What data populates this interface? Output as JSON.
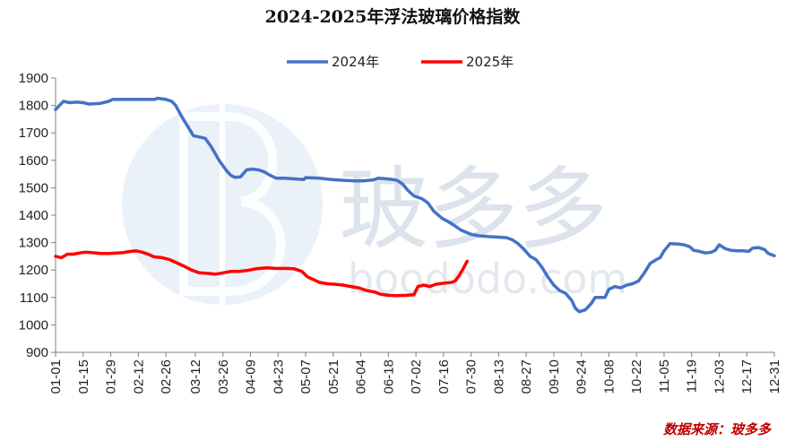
{
  "chart_data": {
    "type": "line",
    "title": "2024-2025年浮法玻璃价格指数",
    "source": "数据来源：玻多多",
    "watermark": {
      "cn": "玻多多",
      "en": "boododo.com"
    },
    "legend_position": "top-center",
    "grid": false,
    "ylim": [
      900,
      1900
    ],
    "yticks": [
      900,
      1000,
      1100,
      1200,
      1300,
      1400,
      1500,
      1600,
      1700,
      1800,
      1900
    ],
    "xlim": [
      "01-01",
      "12-31"
    ],
    "xticks": [
      "01-01",
      "01-15",
      "01-29",
      "02-12",
      "02-26",
      "03-12",
      "03-26",
      "04-09",
      "04-23",
      "05-07",
      "05-21",
      "06-04",
      "06-18",
      "07-02",
      "07-16",
      "07-30",
      "08-13",
      "08-27",
      "09-10",
      "09-24",
      "10-08",
      "10-22",
      "11-05",
      "11-19",
      "12-03",
      "12-17",
      "12-31"
    ],
    "series": [
      {
        "name": "2024年",
        "color": "#4472c4",
        "points": [
          [
            "01-01",
            1785
          ],
          [
            "01-03",
            1800
          ],
          [
            "01-05",
            1815
          ],
          [
            "01-08",
            1810
          ],
          [
            "01-12",
            1812
          ],
          [
            "01-15",
            1810
          ],
          [
            "01-18",
            1805
          ],
          [
            "01-24",
            1808
          ],
          [
            "01-28",
            1815
          ],
          [
            "01-30",
            1822
          ],
          [
            "02-05",
            1822
          ],
          [
            "02-12",
            1822
          ],
          [
            "02-20",
            1822
          ],
          [
            "02-22",
            1826
          ],
          [
            "02-26",
            1822
          ],
          [
            "02-29",
            1815
          ],
          [
            "03-02",
            1800
          ],
          [
            "03-05",
            1760
          ],
          [
            "03-08",
            1725
          ],
          [
            "03-11",
            1690
          ],
          [
            "03-14",
            1685
          ],
          [
            "03-17",
            1680
          ],
          [
            "03-20",
            1650
          ],
          [
            "03-24",
            1600
          ],
          [
            "03-28",
            1560
          ],
          [
            "03-30",
            1545
          ],
          [
            "04-01",
            1538
          ],
          [
            "04-04",
            1540
          ],
          [
            "04-07",
            1565
          ],
          [
            "04-10",
            1568
          ],
          [
            "04-13",
            1565
          ],
          [
            "04-16",
            1558
          ],
          [
            "04-19",
            1545
          ],
          [
            "04-22",
            1535
          ],
          [
            "04-26",
            1535
          ],
          [
            "05-02",
            1532
          ],
          [
            "05-06",
            1530
          ],
          [
            "05-07",
            1537
          ],
          [
            "05-14",
            1535
          ],
          [
            "05-20",
            1530
          ],
          [
            "05-26",
            1527
          ],
          [
            "06-01",
            1525
          ],
          [
            "06-05",
            1525
          ],
          [
            "06-10",
            1528
          ],
          [
            "06-13",
            1535
          ],
          [
            "06-18",
            1532
          ],
          [
            "06-22",
            1528
          ],
          [
            "06-25",
            1515
          ],
          [
            "06-28",
            1490
          ],
          [
            "07-01",
            1470
          ],
          [
            "07-05",
            1460
          ],
          [
            "07-08",
            1445
          ],
          [
            "07-11",
            1415
          ],
          [
            "07-15",
            1390
          ],
          [
            "07-20",
            1370
          ],
          [
            "07-25",
            1345
          ],
          [
            "07-30",
            1330
          ],
          [
            "08-03",
            1325
          ],
          [
            "08-08",
            1322
          ],
          [
            "08-13",
            1320
          ],
          [
            "08-17",
            1318
          ],
          [
            "08-20",
            1310
          ],
          [
            "08-23",
            1295
          ],
          [
            "08-26",
            1275
          ],
          [
            "08-29",
            1250
          ],
          [
            "09-01",
            1238
          ],
          [
            "09-04",
            1210
          ],
          [
            "09-07",
            1175
          ],
          [
            "09-10",
            1145
          ],
          [
            "09-13",
            1125
          ],
          [
            "09-16",
            1115
          ],
          [
            "09-19",
            1090
          ],
          [
            "09-21",
            1060
          ],
          [
            "09-23",
            1048
          ],
          [
            "09-26",
            1055
          ],
          [
            "09-29",
            1078
          ],
          [
            "10-01",
            1100
          ],
          [
            "10-03",
            1100
          ],
          [
            "10-06",
            1100
          ],
          [
            "10-08",
            1130
          ],
          [
            "10-11",
            1140
          ],
          [
            "10-14",
            1135
          ],
          [
            "10-17",
            1145
          ],
          [
            "10-20",
            1150
          ],
          [
            "10-23",
            1160
          ],
          [
            "10-26",
            1190
          ],
          [
            "10-29",
            1225
          ],
          [
            "11-01",
            1238
          ],
          [
            "11-03",
            1245
          ],
          [
            "11-05",
            1270
          ],
          [
            "11-08",
            1296
          ],
          [
            "11-12",
            1295
          ],
          [
            "11-15",
            1292
          ],
          [
            "11-18",
            1285
          ],
          [
            "11-20",
            1272
          ],
          [
            "11-23",
            1268
          ],
          [
            "11-26",
            1262
          ],
          [
            "11-29",
            1265
          ],
          [
            "12-01",
            1272
          ],
          [
            "12-03",
            1292
          ],
          [
            "12-06",
            1278
          ],
          [
            "12-09",
            1272
          ],
          [
            "12-12",
            1270
          ],
          [
            "12-15",
            1270
          ],
          [
            "12-18",
            1268
          ],
          [
            "12-20",
            1280
          ],
          [
            "12-23",
            1282
          ],
          [
            "12-26",
            1275
          ],
          [
            "12-28",
            1260
          ],
          [
            "12-31",
            1252
          ]
        ]
      },
      {
        "name": "2025年",
        "color": "#ff0000",
        "points": [
          [
            "01-01",
            1250
          ],
          [
            "01-04",
            1245
          ],
          [
            "01-07",
            1258
          ],
          [
            "01-10",
            1258
          ],
          [
            "01-13",
            1262
          ],
          [
            "01-16",
            1265
          ],
          [
            "01-20",
            1263
          ],
          [
            "01-24",
            1260
          ],
          [
            "01-28",
            1260
          ],
          [
            "02-01",
            1262
          ],
          [
            "02-04",
            1263
          ],
          [
            "02-08",
            1268
          ],
          [
            "02-11",
            1270
          ],
          [
            "02-14",
            1265
          ],
          [
            "02-17",
            1258
          ],
          [
            "02-20",
            1248
          ],
          [
            "02-24",
            1245
          ],
          [
            "02-28",
            1238
          ],
          [
            "03-03",
            1225
          ],
          [
            "03-06",
            1215
          ],
          [
            "03-10",
            1200
          ],
          [
            "03-14",
            1190
          ],
          [
            "03-18",
            1188
          ],
          [
            "03-22",
            1185
          ],
          [
            "03-26",
            1190
          ],
          [
            "03-30",
            1195
          ],
          [
            "04-03",
            1195
          ],
          [
            "04-07",
            1198
          ],
          [
            "04-12",
            1205
          ],
          [
            "04-17",
            1208
          ],
          [
            "04-22",
            1206
          ],
          [
            "04-27",
            1206
          ],
          [
            "05-01",
            1205
          ],
          [
            "05-05",
            1195
          ],
          [
            "05-08",
            1175
          ],
          [
            "05-11",
            1165
          ],
          [
            "05-14",
            1155
          ],
          [
            "05-18",
            1150
          ],
          [
            "05-22",
            1148
          ],
          [
            "05-26",
            1145
          ],
          [
            "05-30",
            1140
          ],
          [
            "06-03",
            1135
          ],
          [
            "06-07",
            1125
          ],
          [
            "06-11",
            1120
          ],
          [
            "06-14",
            1112
          ],
          [
            "06-18",
            1108
          ],
          [
            "06-22",
            1107
          ],
          [
            "06-27",
            1108
          ],
          [
            "07-01",
            1110
          ],
          [
            "07-03",
            1140
          ],
          [
            "07-06",
            1145
          ],
          [
            "07-09",
            1140
          ],
          [
            "07-12",
            1148
          ],
          [
            "07-16",
            1152
          ],
          [
            "07-20",
            1155
          ],
          [
            "07-22",
            1160
          ],
          [
            "07-24",
            1180
          ],
          [
            "07-26",
            1205
          ],
          [
            "07-28",
            1232
          ]
        ]
      }
    ]
  }
}
